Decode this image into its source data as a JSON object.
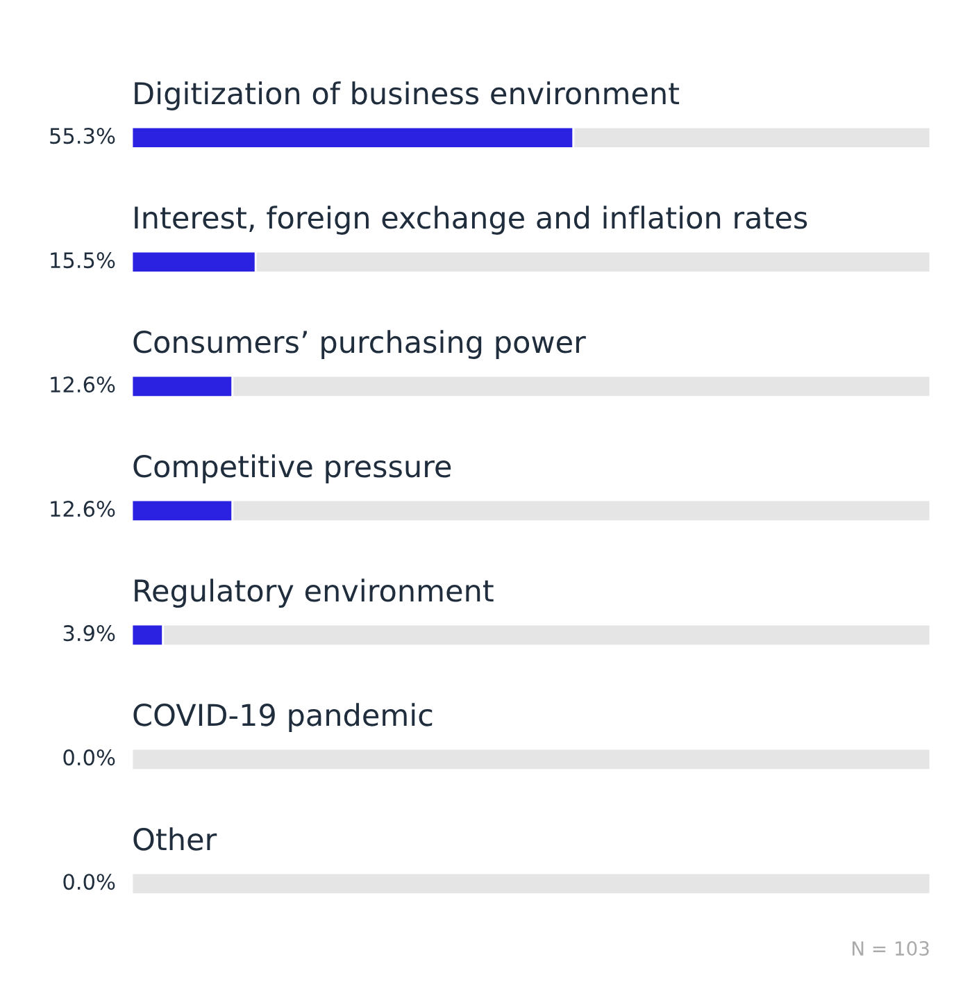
{
  "chart_data": {
    "type": "bar",
    "orientation": "horizontal",
    "stacked": true,
    "categories": [
      "Digitization of business environment",
      "Interest, foreign exchange and inflation rates",
      "Consumers’ purchasing power",
      "Competitive pressure",
      "Regulatory environment",
      "COVID-19 pandemic",
      "Other"
    ],
    "series": [
      {
        "color": "#2a22e0",
        "values": [
          55.3,
          15.5,
          12.6,
          12.6,
          3.9,
          0.0,
          0.0
        ],
        "value_labels": [
          "55.3%",
          "15.5%",
          "12.6%",
          "12.6%",
          "3.9%",
          "0.0%",
          "0.0%"
        ]
      },
      {
        "color": "#e5e5e5",
        "values": [
          44.7,
          84.5,
          87.4,
          87.4,
          96.1,
          100,
          100
        ]
      }
    ],
    "annotations": [
      "N = 103"
    ]
  }
}
